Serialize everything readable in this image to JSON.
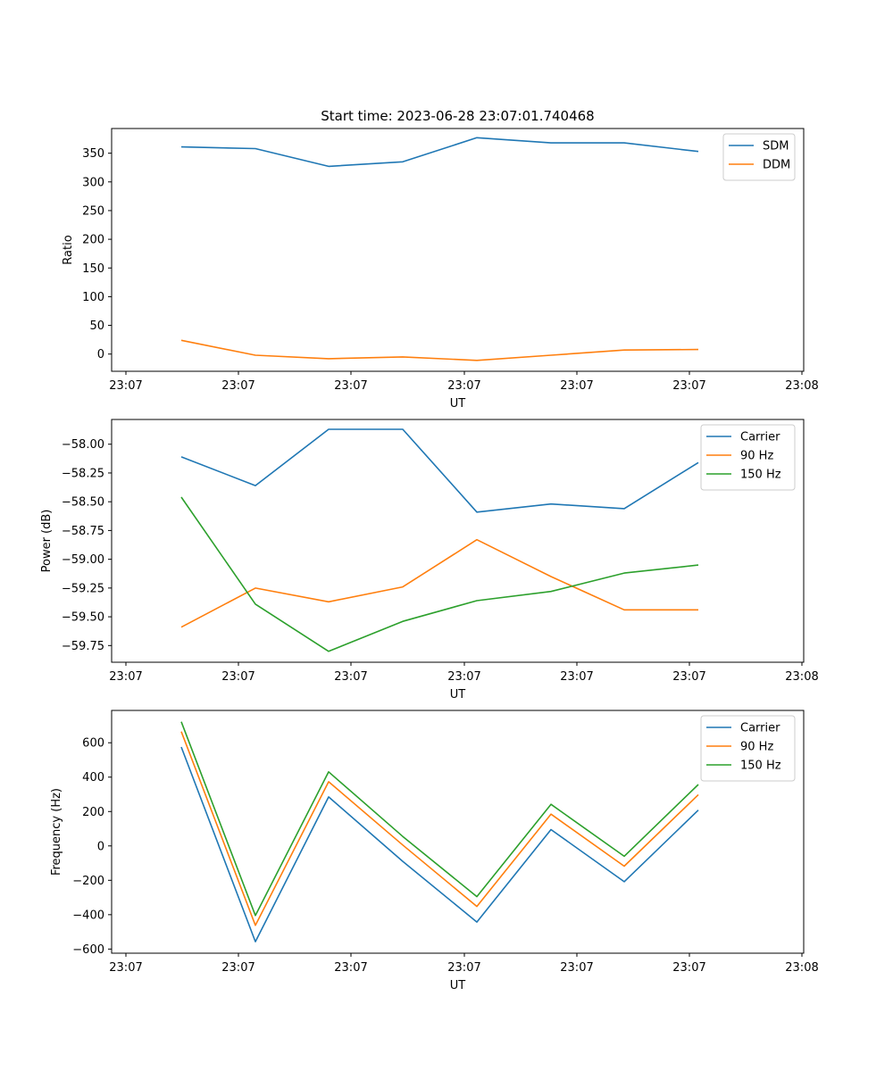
{
  "chart_data": [
    {
      "type": "line",
      "title": "Start time: 2023-06-28 23:07:01.740468",
      "xlabel": "UT",
      "ylabel": "Ratio",
      "x_tick_labels": [
        "23:07",
        "23:07",
        "23:07",
        "23:07",
        "23:07",
        "23:07",
        "23:08"
      ],
      "y_ticks": [
        0,
        50,
        100,
        150,
        200,
        250,
        300,
        350
      ],
      "y_tick_labels": [
        "0",
        "50",
        "100",
        "150",
        "200",
        "250",
        "300",
        "350"
      ],
      "ylim": [
        -30,
        393
      ],
      "grid": false,
      "legend_position": "top-right",
      "series": [
        {
          "name": "SDM",
          "color": "#1f77b4",
          "values": [
            361,
            358,
            327,
            335,
            377,
            368,
            368,
            353
          ]
        },
        {
          "name": "DDM",
          "color": "#ff7f0e",
          "values": [
            24,
            -2,
            -8,
            -5,
            -11,
            -2,
            7,
            8
          ]
        }
      ]
    },
    {
      "type": "line",
      "title": "",
      "xlabel": "UT",
      "ylabel": "Power (dB)",
      "x_tick_labels": [
        "23:07",
        "23:07",
        "23:07",
        "23:07",
        "23:07",
        "23:07",
        "23:08"
      ],
      "y_ticks": [
        -58.0,
        -58.25,
        -58.5,
        -58.75,
        -59.0,
        -59.25,
        -59.5,
        -59.75
      ],
      "y_tick_labels": [
        "−58.00",
        "−58.25",
        "−58.50",
        "−58.75",
        "−59.00",
        "−59.25",
        "−59.50",
        "−59.75"
      ],
      "ylim": [
        -59.895,
        -57.785
      ],
      "grid": false,
      "legend_position": "top-right",
      "series": [
        {
          "name": "Carrier",
          "color": "#1f77b4",
          "values": [
            -58.11,
            -58.36,
            -57.87,
            -57.87,
            -58.59,
            -58.52,
            -58.56,
            -58.16
          ]
        },
        {
          "name": "90 Hz",
          "color": "#ff7f0e",
          "values": [
            -59.59,
            -59.25,
            -59.37,
            -59.24,
            -58.83,
            -59.15,
            -59.44,
            -59.44
          ]
        },
        {
          "name": "150 Hz",
          "color": "#2ca02c",
          "values": [
            -58.46,
            -59.39,
            -59.8,
            -59.54,
            -59.36,
            -59.28,
            -59.12,
            -59.05
          ]
        }
      ]
    },
    {
      "type": "line",
      "title": "",
      "xlabel": "UT",
      "ylabel": "Frequency (Hz)",
      "x_tick_labels": [
        "23:07",
        "23:07",
        "23:07",
        "23:07",
        "23:07",
        "23:07",
        "23:08"
      ],
      "y_ticks": [
        -600,
        -400,
        -200,
        0,
        200,
        400,
        600
      ],
      "y_tick_labels": [
        "−600",
        "−400",
        "−200",
        "0",
        "200",
        "400",
        "600"
      ],
      "ylim": [
        -624,
        788
      ],
      "grid": false,
      "legend_position": "top-right",
      "series": [
        {
          "name": "Carrier",
          "color": "#1f77b4",
          "values": [
            575,
            -557,
            285,
            -90,
            -443,
            95,
            -208,
            208
          ]
        },
        {
          "name": "90 Hz",
          "color": "#ff7f0e",
          "values": [
            665,
            -462,
            373,
            5,
            -352,
            185,
            -118,
            298
          ]
        },
        {
          "name": "150 Hz",
          "color": "#2ca02c",
          "values": [
            722,
            -405,
            431,
            55,
            -295,
            242,
            -60,
            357
          ]
        }
      ]
    }
  ]
}
